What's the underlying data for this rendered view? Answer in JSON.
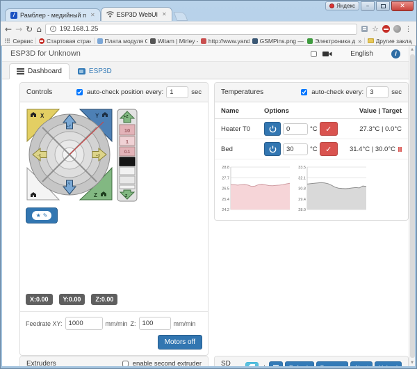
{
  "window": {
    "yandex_button": "Яндекс",
    "minimize": "–",
    "close_glyph": "✕",
    "tabs": [
      {
        "label": "Рамблер - медийный п",
        "favicon": "rambler-icon"
      },
      {
        "label": "ESP3D WebUI",
        "favicon": "wifi-icon"
      }
    ]
  },
  "toolbar": {
    "back": "←",
    "forward": "→",
    "reload": "↻",
    "home": "⌂",
    "url": "192.168.1.25",
    "site_info": "i",
    "star": "☆",
    "menu": "⋮"
  },
  "bookmarks": {
    "apps_label": "Сервисы",
    "items": [
      {
        "label": "Стартовая страница",
        "color": "#c62f28"
      },
      {
        "label": "Плата модуля GSM",
        "color": "#7ba7d7"
      },
      {
        "label": "Witam | Mirley - Ele",
        "color": "#555555"
      },
      {
        "label": "http://www.yandex.r",
        "color": "#c94f4f"
      },
      {
        "label": "GSMPins.png — Янд",
        "color": "#3b5875"
      },
      {
        "label": "Электроника дома",
        "color": "#3f9b3f"
      }
    ],
    "overflow_chevron": "»",
    "other_bookmarks": "Другие закладки"
  },
  "page": {
    "header": {
      "title": "ESP3D for Unknown",
      "language": "English",
      "info": "i",
      "camera_checked": false
    },
    "tabs": [
      {
        "label": "Dashboard"
      },
      {
        "label": "ESP3D"
      }
    ],
    "controls": {
      "title": "Controls",
      "autocheck_label": "auto-check position every:",
      "autocheck_value": "1",
      "autocheck_unit": "sec",
      "autocheck_checked": true,
      "jog": {
        "home_x": "X",
        "home_y": "Y",
        "home_z": "Z",
        "plus_z": "+Z",
        "minus_z": "-Z",
        "steps": [
          "10",
          "1",
          "0.1"
        ],
        "up": "+Y",
        "down": "-Y",
        "left": "-X",
        "right": "+X"
      },
      "macro_star": "★",
      "macro_pencil": "✎",
      "positions": [
        "X:0.00",
        "Y:0.00",
        "Z:0.00"
      ],
      "feedrate": {
        "label_xy": "Feedrate XY:",
        "xy_value": "1000",
        "unit_xy": "mm/min",
        "label_z": "Z:",
        "z_value": "100",
        "unit_z": "mm/min"
      },
      "motors_off_label": "Motors off"
    },
    "temperatures": {
      "title": "Temperatures",
      "autocheck_label": "auto-check every:",
      "autocheck_value": "3",
      "autocheck_unit": "sec",
      "autocheck_checked": true,
      "columns": {
        "name": "Name",
        "options": "Options",
        "value": "Value | Target"
      },
      "rows": [
        {
          "name": "Heater T0",
          "set_value": "0",
          "unit": "°C",
          "reading": "27.3°C | 0.0°C",
          "heating": false
        },
        {
          "name": "Bed",
          "set_value": "30",
          "unit": "°C",
          "reading": "31.4°C | 30.0°C",
          "heating": true
        }
      ],
      "check_glyph": "✓"
    },
    "extruders": {
      "title": "Extruders",
      "enable_label": "enable second extruder",
      "enable_checked": false
    },
    "sd_files": {
      "title": "SD Files",
      "path": "/",
      "buttons": [
        "Refresh",
        "Progress",
        "Abort",
        "Upload"
      ]
    }
  },
  "chart_data": [
    {
      "type": "area",
      "name": "heater-t0-history",
      "yticks": [
        28.8,
        27.7,
        26.5,
        25.4,
        24.2
      ],
      "ylim": [
        24.2,
        28.8
      ],
      "fill": "#f6d5d8",
      "line_color": "#cf9ca2",
      "grid": true,
      "legend": "none",
      "values": [
        26.9,
        26.9,
        26.85,
        26.9,
        26.92,
        26.85,
        26.7,
        26.75,
        26.9,
        26.95,
        26.88,
        26.8,
        26.78,
        26.82,
        26.85,
        26.9,
        26.98,
        27.05
      ]
    },
    {
      "type": "area",
      "name": "bed-history",
      "yticks": [
        33.5,
        32.1,
        30.8,
        29.4,
        28.0
      ],
      "ylim": [
        28.0,
        33.5
      ],
      "fill": "#d9d9d9",
      "line_color": "#8f8f8f",
      "grid": true,
      "legend": "none",
      "values": [
        31.3,
        31.35,
        31.4,
        31.45,
        31.5,
        31.45,
        31.35,
        31.15,
        30.9,
        30.78,
        30.72,
        30.7,
        30.74,
        30.8,
        30.85,
        30.8,
        31.05,
        31.0
      ]
    }
  ]
}
